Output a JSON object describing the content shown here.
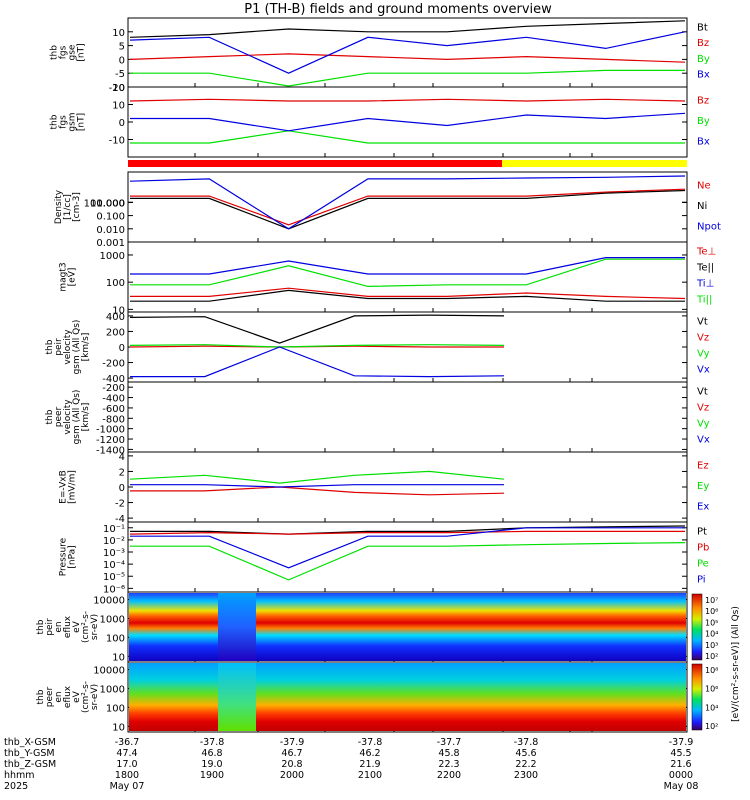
{
  "title": "P1 (TH-B) fields and ground moments overview",
  "colors": {
    "black": "#000000",
    "red": "#e00000",
    "green": "#00e000",
    "blue": "#0000e0",
    "status_red": "#ff0000",
    "status_yellow": "#ffff00"
  },
  "chart_data": [
    {
      "type": "line",
      "panel": "fgs_gse",
      "ylabel": [
        "thb",
        "fgs",
        "gse",
        "[nT]"
      ],
      "ylim": [
        -10,
        15
      ],
      "ticks": [
        10,
        5,
        0,
        -5,
        -10
      ],
      "x": [
        "1730",
        "1800",
        "1900",
        "2000",
        "2100",
        "2200",
        "2300",
        "0000"
      ],
      "series": [
        {
          "name": "Bt",
          "color": "#000000",
          "values": [
            8,
            9,
            11,
            10,
            10,
            12,
            13,
            14
          ]
        },
        {
          "name": "Bz",
          "color": "#e00000",
          "values": [
            0,
            1,
            2,
            1,
            0,
            1,
            0,
            -1
          ]
        },
        {
          "name": "By",
          "color": "#00e000",
          "values": [
            -5,
            -5,
            -10,
            -5,
            -5,
            -5,
            -4,
            -4
          ]
        },
        {
          "name": "Bx",
          "color": "#0000e0",
          "values": [
            7,
            8,
            -5,
            8,
            5,
            8,
            4,
            10
          ]
        }
      ]
    },
    {
      "type": "line",
      "panel": "fgs_gsm",
      "ylabel": [
        "thb",
        "fgs",
        "gsm",
        "[nT]"
      ],
      "ylim": [
        -20,
        20
      ],
      "ticks": [
        20,
        10,
        0,
        -10
      ],
      "x": [
        "1730",
        "1800",
        "1900",
        "2000",
        "2100",
        "2200",
        "2300",
        "0000"
      ],
      "series": [
        {
          "name": "Bz",
          "color": "#e00000",
          "values": [
            12,
            13,
            12,
            12,
            13,
            12,
            13,
            12
          ]
        },
        {
          "name": "By",
          "color": "#00e000",
          "values": [
            -12,
            -12,
            -5,
            -12,
            -12,
            -12,
            -12,
            -12
          ]
        },
        {
          "name": "Bx",
          "color": "#0000e0",
          "values": [
            2,
            2,
            -5,
            2,
            -2,
            4,
            2,
            5
          ]
        }
      ]
    },
    {
      "type": "line",
      "panel": "density",
      "ylabel": [
        "Density",
        "[1/cc]",
        "[cm-3]"
      ],
      "scale": "log",
      "ylim": [
        0.001,
        200
      ],
      "ticks": [
        "100.000",
        "10.000",
        "1.000",
        "0.100",
        "0.010",
        "0.001"
      ],
      "x": [
        "1730",
        "1800",
        "1900",
        "2000",
        "2100",
        "2200",
        "2300",
        "0000"
      ],
      "series": [
        {
          "name": "Ne",
          "color": "#e00000",
          "values": [
            3,
            3,
            0.02,
            3,
            3,
            3,
            6,
            10
          ]
        },
        {
          "name": "Ni",
          "color": "#000000",
          "values": [
            2,
            2,
            0.01,
            2,
            2,
            2,
            5,
            8
          ]
        },
        {
          "name": "Npot",
          "color": "#0000e0",
          "values": [
            40,
            60,
            0.01,
            60,
            60,
            70,
            80,
            100
          ]
        }
      ]
    },
    {
      "type": "line",
      "panel": "temperature",
      "ylabel": [
        "magt3",
        "[eV]"
      ],
      "scale": "log",
      "ylim": [
        8,
        3000
      ],
      "ticks": [
        "1000",
        "100",
        "10"
      ],
      "x": [
        "1730",
        "1800",
        "1900",
        "2000",
        "2100",
        "2200",
        "2300",
        "0000"
      ],
      "series": [
        {
          "name": "Te⊥",
          "color": "#e00000",
          "values": [
            30,
            30,
            60,
            30,
            30,
            40,
            30,
            25
          ]
        },
        {
          "name": "Te||",
          "color": "#000000",
          "values": [
            20,
            20,
            50,
            25,
            25,
            30,
            20,
            20
          ]
        },
        {
          "name": "Ti⊥",
          "color": "#0000e0",
          "values": [
            200,
            200,
            600,
            200,
            200,
            200,
            800,
            800
          ]
        },
        {
          "name": "Ti||",
          "color": "#00e000",
          "values": [
            80,
            80,
            400,
            70,
            80,
            80,
            700,
            700
          ]
        }
      ]
    },
    {
      "type": "line",
      "panel": "peir_velocity",
      "ylabel": [
        "thb",
        "peir",
        "velocity",
        "gsm (All Qs)",
        "[km/s]"
      ],
      "ylim": [
        -450,
        450
      ],
      "ticks": [
        400,
        200,
        0,
        -200,
        -400
      ],
      "x": [
        "1730",
        "1800",
        "1900",
        "2000",
        "2100",
        "2200"
      ],
      "series": [
        {
          "name": "Vt",
          "color": "#000000",
          "values": [
            380,
            390,
            50,
            400,
            410,
            400
          ]
        },
        {
          "name": "Vz",
          "color": "#e00000",
          "values": [
            0,
            10,
            0,
            10,
            0,
            0
          ]
        },
        {
          "name": "Vy",
          "color": "#00e000",
          "values": [
            20,
            30,
            0,
            20,
            30,
            20
          ]
        },
        {
          "name": "Vx",
          "color": "#0000e0",
          "values": [
            -380,
            -380,
            0,
            -370,
            -380,
            -370
          ]
        }
      ]
    },
    {
      "type": "line",
      "panel": "peer_velocity",
      "ylabel": [
        "thb",
        "peer",
        "velocity",
        "gsm (All Qs)",
        "[km/s]"
      ],
      "ylim": [
        -1450,
        -100
      ],
      "ticks": [
        -200,
        -400,
        -600,
        -800,
        -1000,
        -1200,
        -1400
      ],
      "series": [
        {
          "name": "Vt",
          "color": "#000000",
          "values": []
        },
        {
          "name": "Vz",
          "color": "#e00000",
          "values": []
        },
        {
          "name": "Vy",
          "color": "#00e000",
          "values": []
        },
        {
          "name": "Vx",
          "color": "#0000e0",
          "values": []
        }
      ]
    },
    {
      "type": "line",
      "panel": "efield",
      "ylabel": [
        "E=-VxB",
        "[mV/m]"
      ],
      "ylim": [
        -4.5,
        4.5
      ],
      "ticks": [
        4,
        2,
        0,
        -2,
        -4
      ],
      "x": [
        "1730",
        "1800",
        "1900",
        "2000",
        "2100",
        "2200"
      ],
      "series": [
        {
          "name": "Ez",
          "color": "#e00000",
          "values": [
            -0.5,
            -0.5,
            0,
            -0.7,
            -1,
            -0.8
          ]
        },
        {
          "name": "Ey",
          "color": "#00e000",
          "values": [
            1,
            1.5,
            0.5,
            1.5,
            2,
            1
          ]
        },
        {
          "name": "Ex",
          "color": "#0000e0",
          "values": [
            0.3,
            0.3,
            0,
            0.3,
            0.3,
            0.3
          ]
        }
      ]
    },
    {
      "type": "line",
      "panel": "pressure",
      "ylabel": [
        "Pressure",
        "[nPa]"
      ],
      "scale": "log",
      "ylim": [
        5e-07,
        0.3
      ],
      "ticks": [
        "10⁻¹",
        "10⁻²",
        "10⁻³",
        "10⁻⁴",
        "10⁻⁵",
        "10⁻⁶"
      ],
      "x": [
        "1730",
        "1800",
        "1900",
        "2000",
        "2100",
        "2200",
        "2300",
        "0000"
      ],
      "series": [
        {
          "name": "Pt",
          "color": "#000000",
          "values": [
            0.05,
            0.05,
            0.03,
            0.05,
            0.05,
            0.1,
            0.12,
            0.14
          ]
        },
        {
          "name": "Pb",
          "color": "#e00000",
          "values": [
            0.03,
            0.04,
            0.03,
            0.04,
            0.04,
            0.05,
            0.05,
            0.05
          ]
        },
        {
          "name": "Pe",
          "color": "#00e000",
          "values": [
            0.003,
            0.003,
            5e-06,
            0.003,
            0.003,
            0.004,
            0.005,
            0.006
          ]
        },
        {
          "name": "Pi",
          "color": "#0000e0",
          "values": [
            0.02,
            0.02,
            5e-05,
            0.02,
            0.02,
            0.1,
            0.1,
            0.1
          ]
        }
      ]
    },
    {
      "type": "heatmap",
      "panel": "peir_spectrogram",
      "ylabel": [
        "thb",
        "peir",
        "en",
        "eflux",
        "eV",
        "(cm²-s-",
        "sr-eV)"
      ],
      "scale": "log",
      "ylim": [
        5,
        25000
      ],
      "ticks": [
        "10000",
        "1000",
        "100",
        "10"
      ],
      "colorbar_ticks": [
        "10⁷",
        "10⁶",
        "10⁵",
        "10⁴",
        "10³",
        "10²"
      ]
    },
    {
      "type": "heatmap",
      "panel": "peer_spectrogram",
      "ylabel": [
        "thb",
        "peer",
        "en",
        "eflux",
        "eV",
        "(cm²-s-",
        "sr-eV)"
      ],
      "scale": "log",
      "ylim": [
        5,
        25000
      ],
      "ticks": [
        "10000",
        "1000",
        "100",
        "10"
      ],
      "colorbar_ticks": [
        "10⁸",
        "10⁶",
        "10⁴",
        "10²"
      ],
      "colorbar_label": "[eV/(cm²-s-sr-eV)] (All Qs)"
    }
  ],
  "xaxis": {
    "row_labels": [
      "thb_X-GSM",
      "thb_Y-GSM",
      "thb_Z-GSM",
      "hhmm",
      "2025"
    ],
    "columns": [
      {
        "x": "-36.7",
        "y": "47.4",
        "z": "17.0",
        "t": "1800",
        "d": "May 07"
      },
      {
        "x": "-37.8",
        "y": "46.8",
        "z": "19.0",
        "t": "1900",
        "d": ""
      },
      {
        "x": "-37.9",
        "y": "46.7",
        "z": "20.8",
        "t": "2000",
        "d": ""
      },
      {
        "x": "-37.8",
        "y": "46.2",
        "z": "21.9",
        "t": "2100",
        "d": ""
      },
      {
        "x": "-37.7",
        "y": "45.8",
        "z": "22.3",
        "t": "2200",
        "d": ""
      },
      {
        "x": "-37.8",
        "y": "45.6",
        "z": "22.2",
        "t": "2300",
        "d": ""
      },
      {
        "x": "-37.9",
        "y": "45.5",
        "z": "21.6",
        "t": "0000",
        "d": "May 08"
      }
    ]
  }
}
